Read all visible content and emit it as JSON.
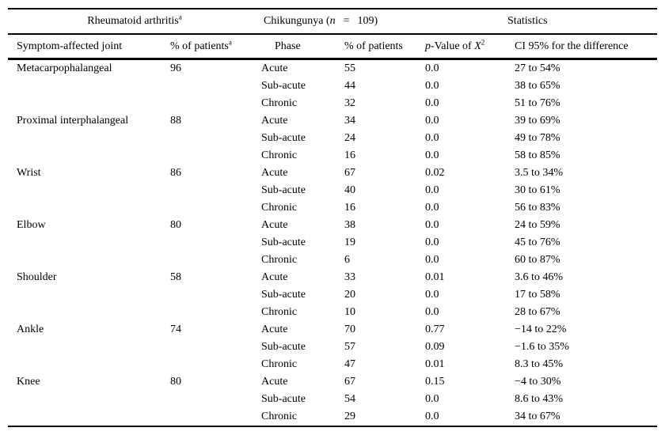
{
  "colors": {
    "text": "#000000",
    "rule": "#000000",
    "background": "#ffffff"
  },
  "table": {
    "header_top": {
      "rheumatoid": {
        "text": "Rheumatoid arthritis",
        "sup": "a"
      },
      "chikungunya": {
        "pre": "Chikungunya (",
        "n": "n",
        "eq": "=",
        "count": "109)"
      },
      "statistics": "Statistics"
    },
    "header_cols": {
      "joint": "Symptom-affected joint",
      "ra_pct": {
        "text": "% of patients",
        "sup": "a"
      },
      "phase": "Phase",
      "chik_pct": "% of patients",
      "pvalue": {
        "p": "p",
        "mid": "-Value of ",
        "x": "X",
        "sup": "2"
      },
      "ci": "CI 95% for the difference"
    },
    "rows": [
      {
        "joint": "Metacarpophalangeal",
        "ra_pct": "96",
        "phases": [
          {
            "phase": "Acute",
            "pct": "55",
            "p": "0.0",
            "ci": "27 to 54%"
          },
          {
            "phase": "Sub-acute",
            "pct": "44",
            "p": "0.0",
            "ci": "38 to 65%"
          },
          {
            "phase": "Chronic",
            "pct": "32",
            "p": "0.0",
            "ci": "51 to 76%"
          }
        ]
      },
      {
        "joint": "Proximal interphalangeal",
        "ra_pct": "88",
        "phases": [
          {
            "phase": "Acute",
            "pct": "34",
            "p": "0.0",
            "ci": "39 to 69%"
          },
          {
            "phase": "Sub-acute",
            "pct": "24",
            "p": "0.0",
            "ci": "49 to 78%"
          },
          {
            "phase": "Chronic",
            "pct": "16",
            "p": "0.0",
            "ci": "58 to 85%"
          }
        ]
      },
      {
        "joint": "Wrist",
        "ra_pct": "86",
        "phases": [
          {
            "phase": "Acute",
            "pct": "67",
            "p": "0.02",
            "ci": "3.5 to 34%"
          },
          {
            "phase": "Sub-acute",
            "pct": "40",
            "p": "0.0",
            "ci": "30 to 61%"
          },
          {
            "phase": "Chronic",
            "pct": "16",
            "p": "0.0",
            "ci": "56 to 83%"
          }
        ]
      },
      {
        "joint": "Elbow",
        "ra_pct": "80",
        "phases": [
          {
            "phase": "Acute",
            "pct": "38",
            "p": "0.0",
            "ci": "24 to 59%"
          },
          {
            "phase": "Sub-acute",
            "pct": "19",
            "p": "0.0",
            "ci": "45 to 76%"
          },
          {
            "phase": "Chronic",
            "pct": "6",
            "p": "0.0",
            "ci": "60 to 87%"
          }
        ]
      },
      {
        "joint": "Shoulder",
        "ra_pct": "58",
        "phases": [
          {
            "phase": "Acute",
            "pct": "33",
            "p": "0.01",
            "ci": "3.6 to 46%"
          },
          {
            "phase": "Sub-acute",
            "pct": "20",
            "p": "0.0",
            "ci": "17 to 58%"
          },
          {
            "phase": "Chronic",
            "pct": "10",
            "p": "0.0",
            "ci": "28 to 67%"
          }
        ]
      },
      {
        "joint": "Ankle",
        "ra_pct": "74",
        "phases": [
          {
            "phase": "Acute",
            "pct": "70",
            "p": "0.77",
            "ci": "−14 to 22%"
          },
          {
            "phase": "Sub-acute",
            "pct": "57",
            "p": "0.09",
            "ci": "−1.6 to 35%"
          },
          {
            "phase": "Chronic",
            "pct": "47",
            "p": "0.01",
            "ci": "8.3 to 45%"
          }
        ]
      },
      {
        "joint": "Knee",
        "ra_pct": "80",
        "phases": [
          {
            "phase": "Acute",
            "pct": "67",
            "p": "0.15",
            "ci": "−4 to 30%"
          },
          {
            "phase": "Sub-acute",
            "pct": "54",
            "p": "0.0",
            "ci": "8.6 to 43%"
          },
          {
            "phase": "Chronic",
            "pct": "29",
            "p": "0.0",
            "ci": "34 to 67%"
          }
        ]
      }
    ]
  }
}
